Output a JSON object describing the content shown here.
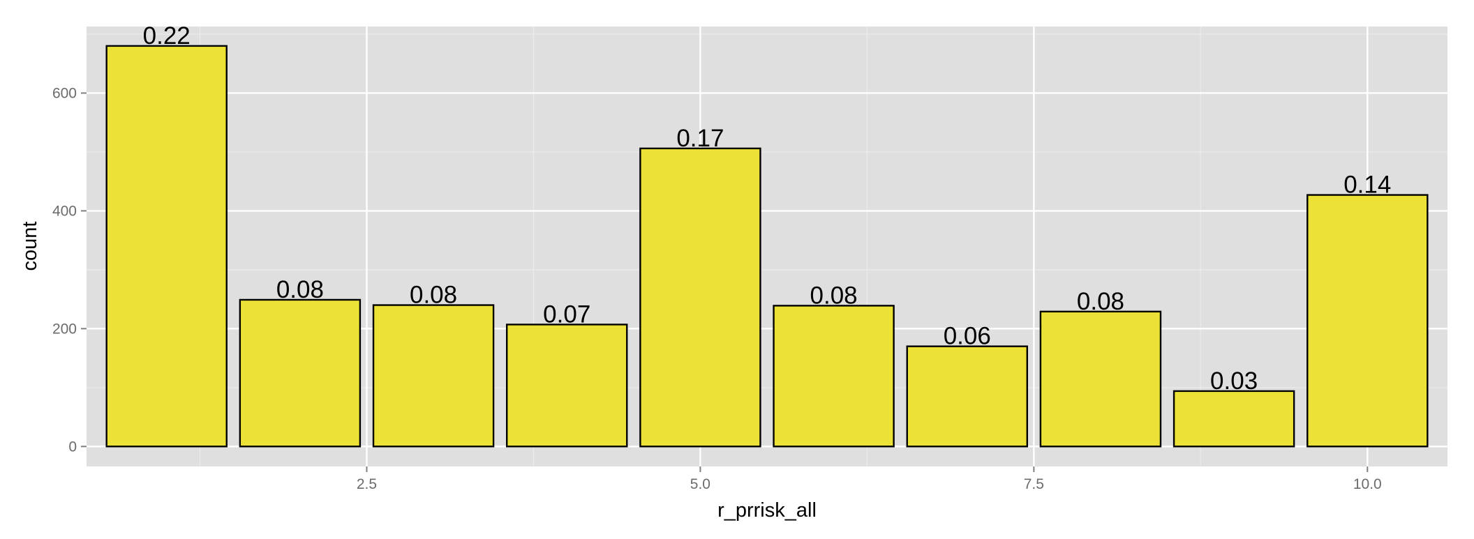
{
  "chart_data": {
    "type": "bar",
    "x": [
      1,
      2,
      3,
      4,
      5,
      6,
      7,
      8,
      9,
      10
    ],
    "values": [
      680,
      249,
      240,
      207,
      506,
      239,
      170,
      229,
      94,
      427
    ],
    "data_labels": [
      "0.22",
      "0.08",
      "0.08",
      "0.07",
      "0.17",
      "0.08",
      "0.06",
      "0.08",
      "0.03",
      "0.14"
    ],
    "xlabel": "r_prrisk_all",
    "ylabel": "count",
    "xlim": [
      0.4,
      10.6
    ],
    "ylim": [
      -34,
      713
    ],
    "x_ticks": [
      2.5,
      5.0,
      7.5,
      10.0
    ],
    "x_tick_labels": [
      "2.5",
      "5.0",
      "7.5",
      "10.0"
    ],
    "y_ticks": [
      0,
      200,
      400,
      600
    ],
    "y_tick_labels": [
      "0",
      "200",
      "400",
      "600"
    ],
    "grid": true,
    "legend": "none",
    "colors": {
      "bar_fill": "#ECE136",
      "bar_stroke": "#000000",
      "panel_background": "#DFDFDF",
      "grid_major": "#FFFFFF",
      "grid_minor": "#EBEBEB"
    }
  }
}
